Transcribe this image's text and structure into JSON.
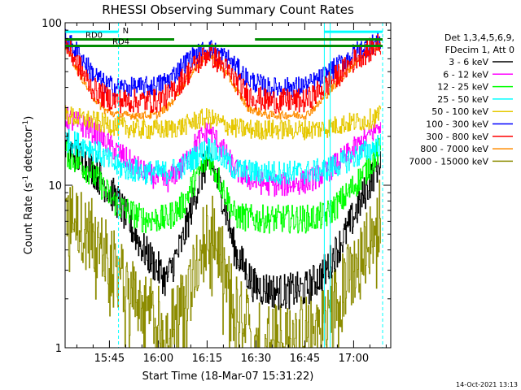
{
  "chart_data": {
    "type": "line",
    "title": "RHESSI Observing Summary Count Rates",
    "xlabel": "Start Time (18-Mar-07 15:31:22)",
    "ylabel_main": "Count Rate (s",
    "ylabel_sup": "-1",
    "ylabel_rest": " detector",
    "ylabel_end": ")",
    "yscale": "log",
    "ylim": [
      1,
      100
    ],
    "xlim_minutes": [
      0,
      100
    ],
    "x_ticks": [
      {
        "label": "15:45",
        "minute": 13.6
      },
      {
        "label": "16:00",
        "minute": 28.6
      },
      {
        "label": "16:15",
        "minute": 43.6
      },
      {
        "label": "16:30",
        "minute": 58.6
      },
      {
        "label": "16:45",
        "minute": 73.6
      },
      {
        "label": "17:00",
        "minute": 88.6
      }
    ],
    "y_ticks": [
      {
        "label": "100",
        "value": 100
      },
      {
        "label": "10",
        "value": 10
      },
      {
        "label": "1",
        "value": 1
      }
    ],
    "legend": {
      "position": "right",
      "header": [
        "Det 1,3,4,5,6,9,",
        "FDecim 1, Att 0"
      ],
      "entries": [
        {
          "label": "3 - 6 keV",
          "color": "#000000"
        },
        {
          "label": "6 - 12 keV",
          "color": "#ff00ff"
        },
        {
          "label": "12 - 25 keV",
          "color": "#00ff00"
        },
        {
          "label": "25 - 50 keV",
          "color": "#00ffff"
        },
        {
          "label": "50 - 100 keV",
          "color": "#e6c800"
        },
        {
          "label": "100 - 300 keV",
          "color": "#0000ff"
        },
        {
          "label": "300 - 800 keV",
          "color": "#ff0000"
        },
        {
          "label": "800 - 7000 keV",
          "color": "#ff8c00"
        },
        {
          "label": "7000 - 15000 keV",
          "color": "#8c8c00"
        }
      ]
    },
    "series": [
      {
        "name": "3 - 6 keV",
        "color": "#000000",
        "jitter": 0.45,
        "x": [
          0,
          8,
          16,
          24,
          31,
          36,
          40,
          44,
          48,
          52,
          58,
          66,
          74,
          80,
          86,
          92,
          97
        ],
        "y": [
          17,
          13,
          8,
          4,
          2.6,
          4.5,
          9,
          15,
          9,
          4,
          2.4,
          2.2,
          2.3,
          3,
          5,
          9,
          15
        ]
      },
      {
        "name": "6 - 12 keV",
        "color": "#ff00ff",
        "jitter": 0.3,
        "x": [
          0,
          8,
          16,
          24,
          31,
          36,
          40,
          44,
          48,
          52,
          58,
          66,
          74,
          80,
          86,
          92,
          97
        ],
        "y": [
          26,
          22,
          16,
          12,
          10.5,
          13,
          18,
          22,
          17,
          12.5,
          10.5,
          10,
          10.5,
          12,
          15,
          19,
          24
        ]
      },
      {
        "name": "12 - 25 keV",
        "color": "#00ff00",
        "jitter": 0.35,
        "x": [
          0,
          8,
          16,
          24,
          31,
          36,
          40,
          44,
          48,
          52,
          58,
          66,
          74,
          80,
          86,
          92,
          97
        ],
        "y": [
          16,
          12,
          7.5,
          6.2,
          6.2,
          7.5,
          11,
          15,
          10,
          6.5,
          6.2,
          6.2,
          6.2,
          6.5,
          8.5,
          12,
          17
        ]
      },
      {
        "name": "25 - 50 keV",
        "color": "#00ffff",
        "jitter": 0.3,
        "x": [
          0,
          8,
          16,
          24,
          31,
          36,
          40,
          44,
          48,
          52,
          58,
          66,
          74,
          80,
          86,
          92,
          97
        ],
        "y": [
          19,
          17,
          13,
          12,
          12,
          13,
          15,
          17,
          15,
          12.5,
          12,
          12,
          12,
          12.5,
          14,
          16,
          18
        ]
      },
      {
        "name": "50 - 100 keV",
        "color": "#e6c800",
        "jitter": 0.25,
        "x": [
          0,
          8,
          16,
          24,
          31,
          36,
          40,
          44,
          48,
          52,
          58,
          66,
          74,
          80,
          86,
          92,
          97
        ],
        "y": [
          27,
          25,
          23,
          22,
          22,
          23,
          25,
          26,
          24,
          22.5,
          22,
          22,
          22,
          22.5,
          24,
          25,
          27
        ]
      },
      {
        "name": "100 - 300 keV",
        "color": "#0000ff",
        "jitter": 0.25,
        "x": [
          0,
          4,
          8,
          12,
          16,
          22,
          28,
          32,
          38,
          44,
          50,
          56,
          62,
          68,
          74,
          78,
          84,
          90,
          97
        ],
        "y": [
          80,
          65,
          50,
          42,
          40,
          40,
          41,
          45,
          60,
          70,
          60,
          45,
          40,
          40,
          41,
          45,
          55,
          68,
          78
        ]
      },
      {
        "name": "300 - 800 keV",
        "color": "#ff0000",
        "jitter": 0.3,
        "x": [
          0,
          4,
          8,
          12,
          16,
          22,
          28,
          32,
          38,
          44,
          50,
          56,
          62,
          68,
          74,
          78,
          84,
          90,
          97
        ],
        "y": [
          74,
          55,
          40,
          35,
          33,
          33,
          33,
          36,
          50,
          66,
          50,
          36,
          33,
          33,
          33,
          38,
          48,
          62,
          74
        ]
      },
      {
        "name": "800 - 7000 keV",
        "color": "#ff8c00",
        "jitter": 0.1,
        "x": [
          0,
          4,
          8,
          12,
          16,
          22,
          28,
          32,
          38,
          44,
          50,
          56,
          62,
          68,
          74,
          78,
          84,
          90,
          97
        ],
        "y": [
          72,
          50,
          36,
          29,
          27,
          27,
          27,
          31,
          47,
          65,
          47,
          30,
          27,
          27,
          27,
          32,
          44,
          60,
          73
        ]
      },
      {
        "name": "7000 - 15000 keV",
        "color": "#8c8c00",
        "jitter": 0.9,
        "x": [
          0,
          8,
          16,
          24,
          31,
          36,
          40,
          44,
          48,
          52,
          58,
          66,
          74,
          80,
          86,
          92,
          97
        ],
        "y": [
          7,
          5,
          3,
          1.8,
          1.3,
          1.8,
          3.5,
          6,
          3.5,
          1.8,
          1.2,
          1.2,
          1.3,
          1.6,
          2.5,
          4,
          7
        ]
      }
    ],
    "vertical_lines": [
      {
        "minute": 0,
        "color": "#00ffff",
        "style": "solid"
      },
      {
        "minute": 16.4,
        "color": "#00ffff",
        "style": "dashed"
      },
      {
        "minute": 79.6,
        "color": "#00ffff",
        "style": "solid"
      },
      {
        "minute": 81.4,
        "color": "#00ffff",
        "style": "solid"
      },
      {
        "minute": 97.5,
        "color": "#00ffff",
        "style": "dashed"
      }
    ],
    "bars": [
      {
        "label": "N",
        "color": "#00ffff",
        "value": 88,
        "segments": [
          [
            0,
            16.4
          ],
          [
            79.6,
            97.5
          ]
        ]
      },
      {
        "label": "RD0",
        "color": "#008c00",
        "value": 79,
        "segments": [
          [
            0,
            33.5
          ],
          [
            58.3,
            97.5
          ]
        ]
      },
      {
        "label": "RD4",
        "color": "#008c00",
        "value": 72,
        "segments": [
          [
            0,
            97.5
          ]
        ]
      }
    ]
  },
  "footer": {
    "timestamp": "14-Oct-2021 13:13"
  }
}
